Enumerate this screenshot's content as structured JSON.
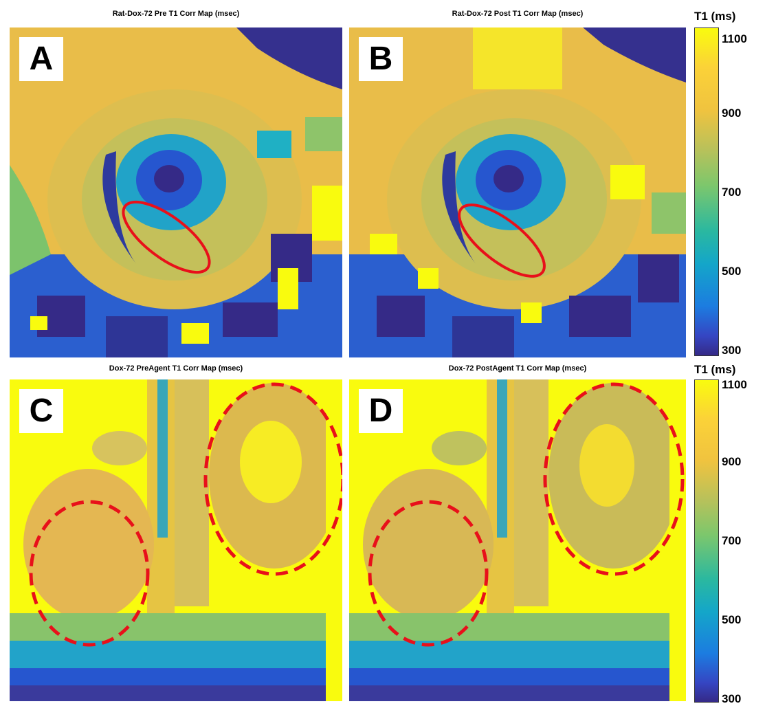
{
  "panels": [
    {
      "letter": "A",
      "title": "Rat-Dox-72 Pre T1 Corr Map (msec)"
    },
    {
      "letter": "B",
      "title": "Rat-Dox-72 Post T1 Corr Map (msec)"
    },
    {
      "letter": "C",
      "title": "Dox-72 PreAgent T1 Corr Map (msec)"
    },
    {
      "letter": "D",
      "title": "Dox-72 PostAgent T1 Corr Map (msec)"
    }
  ],
  "colorbars": [
    {
      "title": "T1 (ms)",
      "ticks": [
        "1100",
        "900",
        "700",
        "500",
        "300"
      ]
    },
    {
      "title": "T1 (ms)",
      "ticks": [
        "1100",
        "900",
        "700",
        "500",
        "300"
      ]
    }
  ],
  "colors": {
    "annotation": "#e8101a",
    "bright": "#f9fb0e",
    "orange": "#f0c33f",
    "green": "#8ec46a",
    "cyan": "#1fb0c4",
    "blue": "#2a6fdb",
    "navy": "#352a87"
  }
}
